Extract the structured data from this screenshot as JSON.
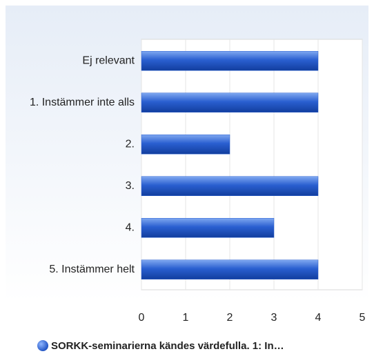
{
  "chart_data": {
    "type": "bar",
    "orientation": "horizontal",
    "categories": [
      "Ej relevant",
      "1. Instämmer inte alls",
      "2.",
      "3.",
      "4.",
      "5. Instämmer helt"
    ],
    "series": [
      {
        "name": "SORKK-seminarierna kändes värdefulla. 1: In…",
        "color": "#2a5fd0",
        "values": [
          4,
          4,
          2,
          4,
          3,
          4
        ]
      }
    ],
    "xlim": [
      0,
      5
    ],
    "xticks": [
      0,
      1,
      2,
      3,
      4,
      5
    ],
    "grid": true,
    "legend": "bottom"
  }
}
